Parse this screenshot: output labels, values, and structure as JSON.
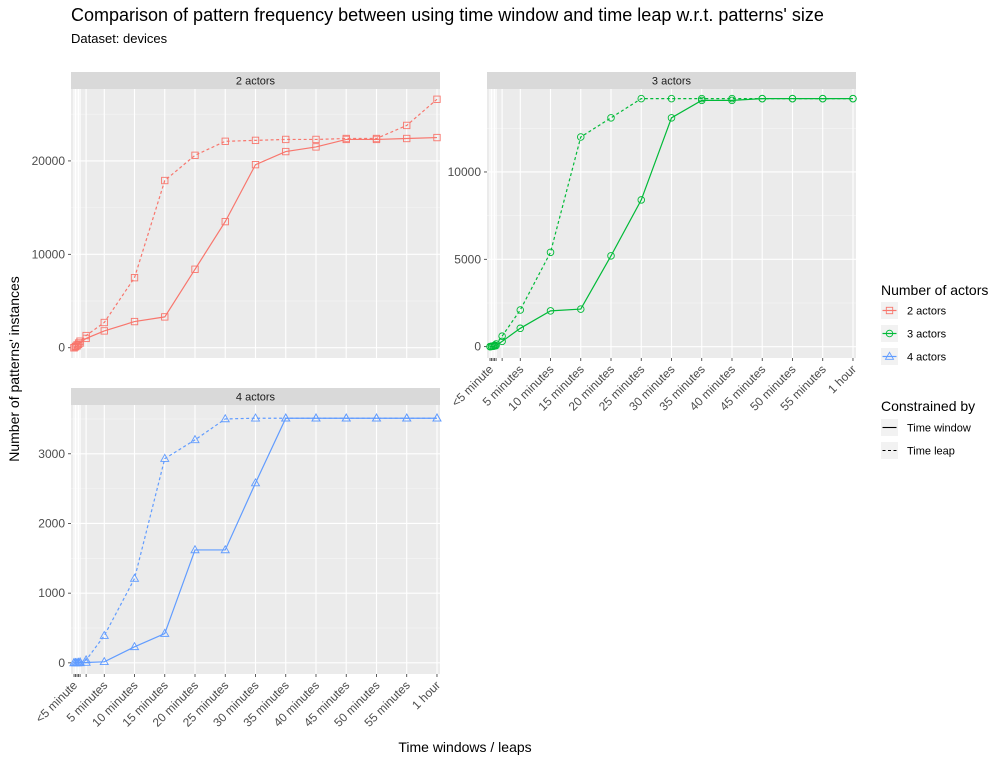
{
  "title": "Comparison of pattern frequency between using time window and time leap w.r.t. patterns' size",
  "subtitle": "Dataset: devices",
  "chart_data": {
    "type": "line",
    "xlabel": "Time windows / leaps",
    "ylabel": "Number of patterns' instances",
    "x_range_minutes": [
      -0.5,
      60.5
    ],
    "x_ticks": [
      {
        "minute": 0,
        "label": "<5 minute"
      },
      {
        "minute": 5,
        "label": "5 minutes"
      },
      {
        "minute": 10,
        "label": "10 minutes"
      },
      {
        "minute": 15,
        "label": "15 minutes"
      },
      {
        "minute": 20,
        "label": "20 minutes"
      },
      {
        "minute": 25,
        "label": "25 minutes"
      },
      {
        "minute": 30,
        "label": "30 minutes"
      },
      {
        "minute": 35,
        "label": "35 minutes"
      },
      {
        "minute": 40,
        "label": "40 minutes"
      },
      {
        "minute": 45,
        "label": "45 minutes"
      },
      {
        "minute": 50,
        "label": "50 minutes"
      },
      {
        "minute": 55,
        "label": "55 minutes"
      },
      {
        "minute": 60,
        "label": "1 hour"
      }
    ],
    "x_minor_ticks_minutes": [
      0.25,
      0.5,
      0.75,
      1,
      2
    ],
    "legend": {
      "placement": "right",
      "color_title": "Number of actors",
      "color_items": [
        {
          "label": "2 actors",
          "color": "#F8766D",
          "shape": "square"
        },
        {
          "label": "3 actors",
          "color": "#00BA38",
          "shape": "circle"
        },
        {
          "label": "4 actors",
          "color": "#619CFF",
          "shape": "triangle"
        }
      ],
      "linetype_title": "Constrained by",
      "linetype_items": [
        {
          "label": "Time window",
          "dash": "solid"
        },
        {
          "label": "Time leap",
          "dash": "dashed"
        }
      ]
    },
    "grid": true,
    "panels": [
      {
        "strip": "2 actors",
        "color": "#F8766D",
        "shape": "square",
        "ylim": [
          -1100,
          27700
        ],
        "y_ticks": [
          0,
          10000,
          20000
        ],
        "series": [
          {
            "name": "Time window",
            "dash": "solid",
            "x": [
              0,
              0.25,
              0.5,
              0.75,
              1,
              2,
              5,
              10,
              15,
              20,
              25,
              30,
              35,
              40,
              45,
              50,
              55,
              60
            ],
            "y": [
              0,
              100,
              200,
              350,
              500,
              1000,
              1800,
              2800,
              3300,
              8400,
              13500,
              19600,
              21000,
              21500,
              22300,
              22300,
              22400,
              22500
            ]
          },
          {
            "name": "Time leap",
            "dash": "dashed",
            "x": [
              0,
              0.25,
              0.5,
              0.75,
              1,
              2,
              5,
              10,
              15,
              20,
              25,
              30,
              35,
              40,
              45,
              50,
              55,
              60
            ],
            "y": [
              0,
              150,
              300,
              500,
              700,
              1300,
              2700,
              7500,
              17900,
              20600,
              22100,
              22200,
              22300,
              22300,
              22400,
              22400,
              23800,
              26600
            ]
          }
        ]
      },
      {
        "strip": "3 actors",
        "color": "#00BA38",
        "shape": "circle",
        "ylim": [
          -650,
          14750
        ],
        "y_ticks": [
          0,
          5000,
          10000
        ],
        "series": [
          {
            "name": "Time window",
            "dash": "solid",
            "x": [
              0,
              0.25,
              0.5,
              0.75,
              1,
              2,
              5,
              10,
              15,
              20,
              25,
              30,
              35,
              40,
              45,
              50,
              55,
              60
            ],
            "y": [
              0,
              10,
              20,
              40,
              60,
              300,
              1050,
              2050,
              2150,
              5200,
              8400,
              13100,
              14100,
              14100,
              14200,
              14200,
              14200,
              14200
            ]
          },
          {
            "name": "Time leap",
            "dash": "dashed",
            "x": [
              0,
              0.25,
              0.5,
              0.75,
              1,
              2,
              5,
              10,
              15,
              20,
              25,
              30,
              35,
              40,
              45,
              50,
              55,
              60
            ],
            "y": [
              0,
              20,
              40,
              80,
              150,
              600,
              2100,
              5400,
              12000,
              13100,
              14200,
              14200,
              14200,
              14200,
              14200,
              14200,
              14200,
              14200
            ]
          }
        ]
      },
      {
        "strip": "4 actors",
        "color": "#619CFF",
        "shape": "triangle",
        "ylim": [
          -160,
          3700
        ],
        "y_ticks": [
          0,
          1000,
          2000,
          3000
        ],
        "series": [
          {
            "name": "Time window",
            "dash": "solid",
            "x": [
              0,
              0.25,
              0.5,
              0.75,
              1,
              2,
              5,
              10,
              15,
              20,
              25,
              30,
              35,
              40,
              45,
              50,
              55,
              60
            ],
            "y": [
              0,
              0,
              0,
              0,
              0,
              5,
              15,
              230,
              420,
              1620,
              1620,
              2580,
              3510,
              3510,
              3510,
              3510,
              3510,
              3510
            ]
          },
          {
            "name": "Time leap",
            "dash": "dashed",
            "x": [
              0,
              0.25,
              0.5,
              0.75,
              1,
              2,
              5,
              10,
              15,
              20,
              25,
              30,
              35,
              40,
              45,
              50,
              55,
              60
            ],
            "y": [
              0,
              0,
              0,
              5,
              10,
              40,
              390,
              1210,
              2930,
              3200,
              3500,
              3510,
              3510,
              3510,
              3510,
              3510,
              3510,
              3510
            ]
          }
        ]
      }
    ]
  }
}
